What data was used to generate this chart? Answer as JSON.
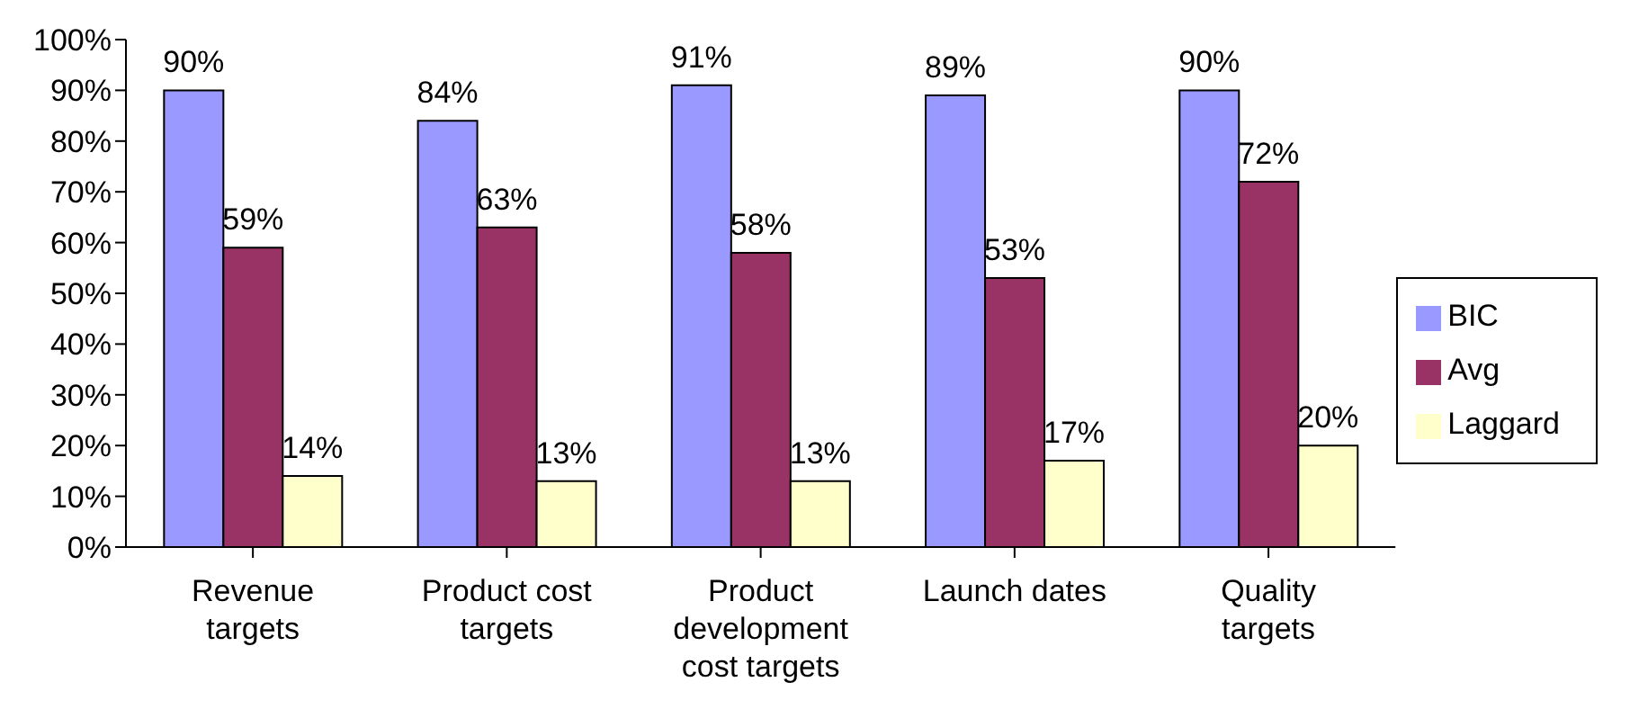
{
  "chart_data": {
    "type": "bar",
    "categories": [
      "Revenue targets",
      "Product cost targets",
      "Product development cost targets",
      "Launch dates",
      "Quality targets"
    ],
    "series": [
      {
        "name": "BIC",
        "color": "#9999ff",
        "values": [
          90,
          84,
          91,
          89,
          90
        ],
        "value_labels": [
          "90%",
          "84%",
          "91%",
          "89%",
          "90%"
        ]
      },
      {
        "name": "Avg",
        "color": "#993366",
        "values": [
          59,
          63,
          58,
          53,
          72
        ],
        "value_labels": [
          "59%",
          "63%",
          "58%",
          "53%",
          "72%"
        ]
      },
      {
        "name": "Laggard",
        "color": "#ffffcc",
        "values": [
          14,
          13,
          13,
          17,
          20
        ],
        "value_labels": [
          "14%",
          "13%",
          "13%",
          "17%",
          "20%"
        ]
      }
    ],
    "ylim": [
      0,
      100
    ],
    "yticks": [
      {
        "value": 0,
        "label": "0%"
      },
      {
        "value": 10,
        "label": "10%"
      },
      {
        "value": 20,
        "label": "20%"
      },
      {
        "value": 30,
        "label": "30%"
      },
      {
        "value": 40,
        "label": "40%"
      },
      {
        "value": 50,
        "label": "50%"
      },
      {
        "value": 60,
        "label": "60%"
      },
      {
        "value": 70,
        "label": "70%"
      },
      {
        "value": 80,
        "label": "80%"
      },
      {
        "value": 90,
        "label": "90%"
      },
      {
        "value": 100,
        "label": "100%"
      }
    ],
    "grid": false,
    "legend": "right"
  }
}
